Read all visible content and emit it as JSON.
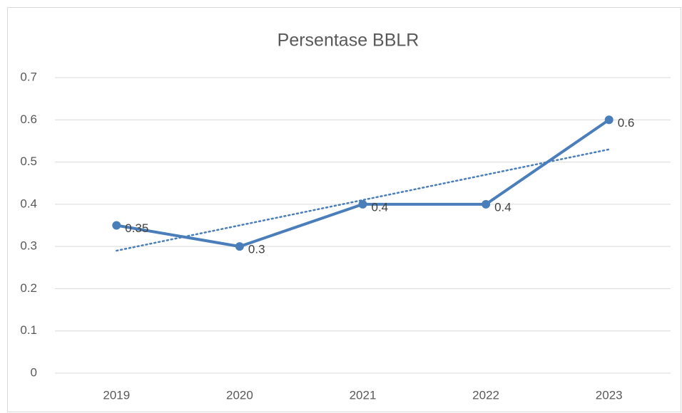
{
  "chart_data": {
    "type": "line",
    "title": "Persentase BBLR",
    "categories": [
      "2019",
      "2020",
      "2021",
      "2022",
      "2023"
    ],
    "values": [
      0.35,
      0.3,
      0.4,
      0.4,
      0.6
    ],
    "color": "#4a7ebb",
    "ylim": [
      0,
      0.7
    ],
    "yticks": [
      0,
      0.1,
      0.2,
      0.3,
      0.4,
      0.5,
      0.6,
      0.7
    ],
    "grid": true,
    "trendline": "linear",
    "data_labels": true
  }
}
